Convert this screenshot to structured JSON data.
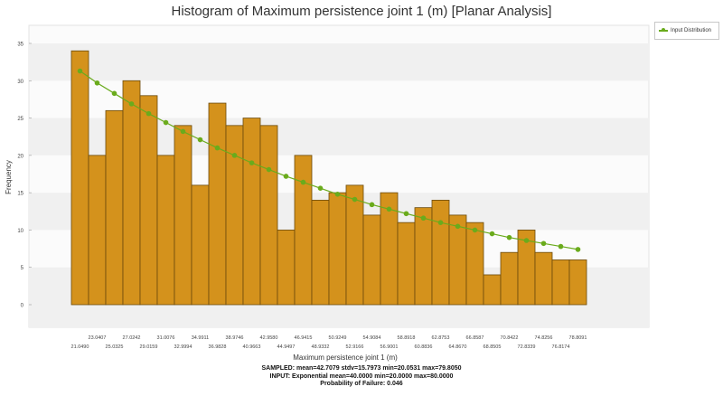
{
  "chart_data": {
    "type": "bar",
    "title": "Histogram of Maximum persistence joint 1 (m) [Planar Analysis]",
    "xlabel": "Maximum persistence joint 1 (m)",
    "ylabel": "Frequency",
    "ylim": [
      0,
      35
    ],
    "yticks": [
      "0",
      "5",
      "10",
      "15",
      "20",
      "25",
      "30",
      "35"
    ],
    "grid": "horizontal bands",
    "legend_position": "top-right",
    "legend": [
      "Input Distribution"
    ],
    "bar_color": "#d4921c",
    "bar_edge_color": "#6b4a0c",
    "line_color": "#6aab1c",
    "bin_labels": [
      "21.0490",
      "23.0407",
      "25.0325",
      "27.0242",
      "29.0159",
      "31.0076",
      "32.9994",
      "34.9911",
      "36.9828",
      "38.9746",
      "40.9663",
      "42.9580",
      "44.9497",
      "46.9415",
      "48.9332",
      "50.9249",
      "52.9166",
      "54.9084",
      "56.9001",
      "58.8918",
      "60.8836",
      "62.8753",
      "64.8670",
      "66.8587",
      "68.8505",
      "70.8422",
      "72.8339",
      "74.8256",
      "76.8174",
      "78.8091"
    ],
    "values": [
      34,
      20,
      26,
      30,
      28,
      20,
      24,
      16,
      27,
      24,
      25,
      24,
      10,
      20,
      14,
      15,
      16,
      12,
      15,
      11,
      13,
      14,
      12,
      11,
      4,
      7,
      10,
      7,
      6,
      6
    ],
    "series": [
      {
        "name": "Input Distribution",
        "type": "line",
        "values": [
          31.3,
          29.7,
          28.3,
          26.9,
          25.6,
          24.4,
          23.2,
          22.1,
          21.0,
          20.0,
          19.0,
          18.1,
          17.2,
          16.4,
          15.6,
          14.8,
          14.1,
          13.4,
          12.8,
          12.2,
          11.6,
          11.0,
          10.5,
          10.0,
          9.5,
          9.0,
          8.6,
          8.2,
          7.8,
          7.4
        ]
      }
    ]
  },
  "stats": {
    "sampled": "SAMPLED: mean=42.7079 stdv=15.7973 min=20.0531 max=79.8050",
    "input": "INPUT: Exponential mean=40.0000 min=20.0000 max=80.0000",
    "probability": "Probability of Failure: 0.046"
  }
}
